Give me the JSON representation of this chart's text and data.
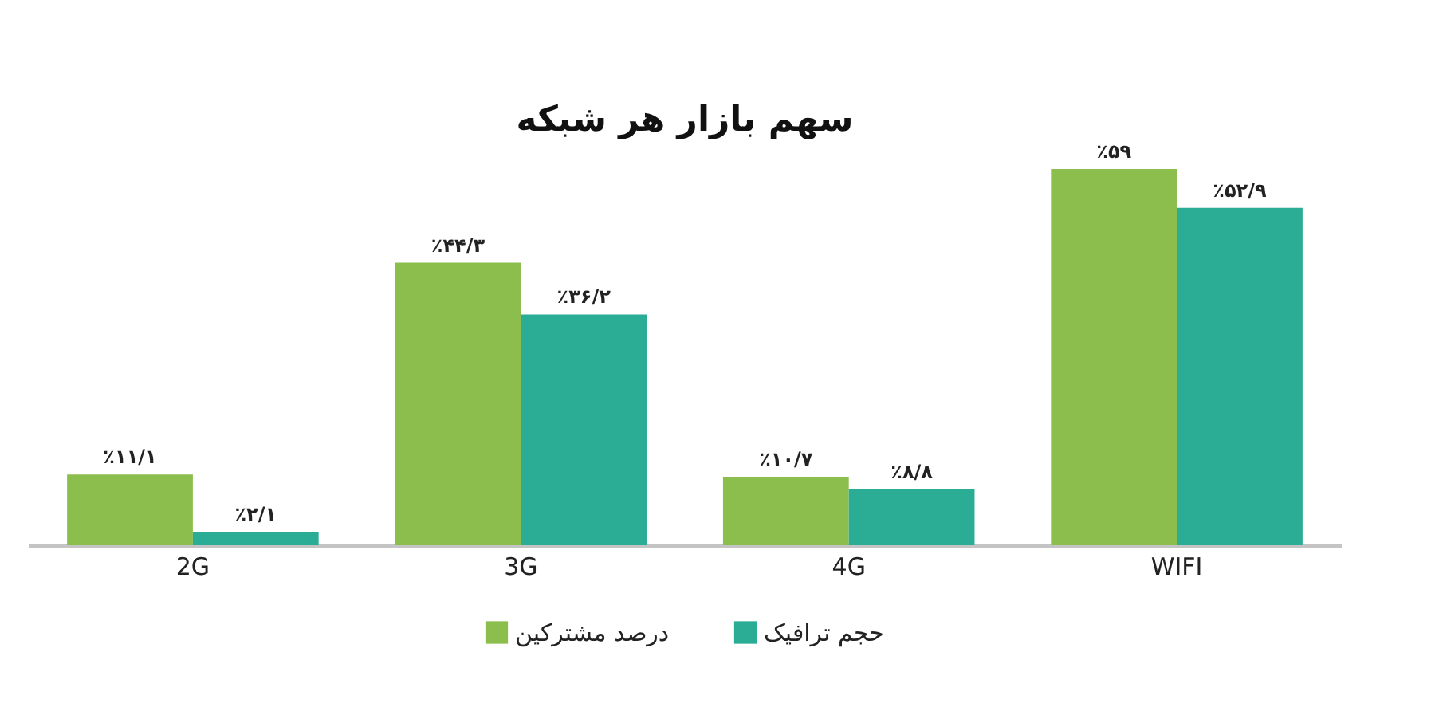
{
  "chart_data": {
    "type": "bar",
    "title": "سهم بازار هر شبکه",
    "categories": [
      "2G",
      "3G",
      "4G",
      "WIFI"
    ],
    "series": [
      {
        "name": "درصد مشترکین",
        "color": "#8bbe4c",
        "values": [
          11.1,
          44.3,
          10.7,
          59
        ],
        "value_labels": [
          "٪۱۱/۱",
          "٪۴۴/۳",
          "٪۱۰/۷",
          "٪۵۹"
        ]
      },
      {
        "name": "حجم ترافیک",
        "color": "#2aad94",
        "values": [
          2.1,
          36.2,
          8.8,
          52.9
        ],
        "value_labels": [
          "٪۲/۱",
          "٪۳۶/۲",
          "٪۸/۸",
          "٪۵۲/۹"
        ]
      }
    ],
    "legend": "bottom",
    "tick_labels": "x"
  }
}
